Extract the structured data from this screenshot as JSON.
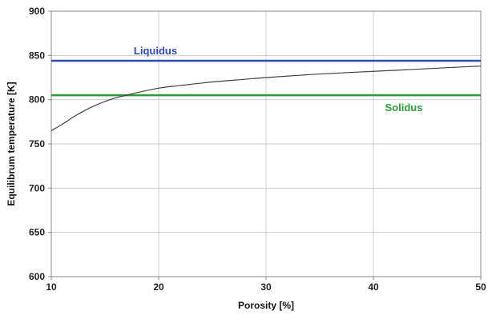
{
  "chart_data": {
    "type": "line",
    "title": "",
    "xlabel": "Porosity [%]",
    "ylabel": "Equilibrum temperature [K]",
    "xlim": [
      10,
      50
    ],
    "ylim": [
      600,
      900
    ],
    "x_ticks": [
      "10",
      "20",
      "30",
      "40",
      "50"
    ],
    "y_ticks": [
      "600",
      "650",
      "700",
      "750",
      "800",
      "850",
      "900"
    ],
    "grid": true,
    "series": [
      {
        "x": [
          10,
          11,
          12,
          13,
          14,
          15,
          16,
          17,
          18,
          20,
          22,
          25,
          28,
          30,
          35,
          40,
          45,
          50
        ],
        "y": [
          765,
          772,
          780,
          787,
          793,
          798,
          802,
          805,
          808,
          813,
          816,
          820,
          823,
          825,
          829,
          832,
          835,
          838
        ],
        "color": "#404040"
      }
    ],
    "reference_lines": [
      {
        "label": "Liquidus",
        "value": 844,
        "color": "#2e4bb0"
      },
      {
        "label": "Solidus",
        "value": 805,
        "color": "#2e9a3a"
      }
    ]
  }
}
